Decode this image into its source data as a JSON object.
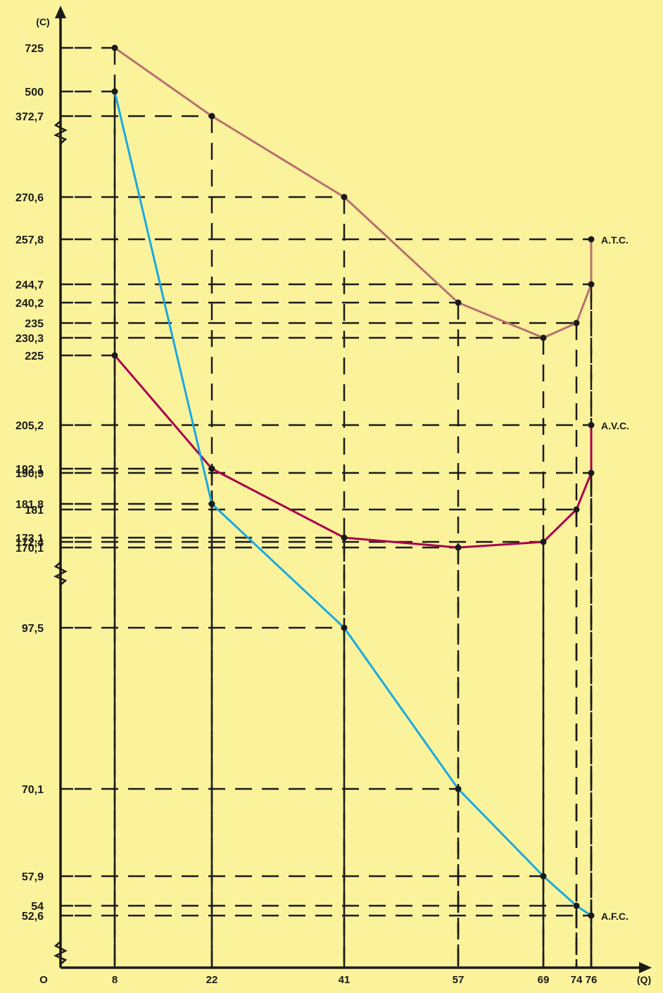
{
  "chart_data": {
    "type": "line",
    "title": "",
    "xlabel": "(Q)",
    "ylabel": "(C)",
    "origin_label": "O",
    "axis_breaks": "y-axis broken between 372,7 and 270,6, between 170,1 and 97,5, and between 52,6 and 0",
    "x_ticks": [
      8,
      22,
      41,
      57,
      69,
      74,
      76
    ],
    "y_ticks": [
      "725",
      "500",
      "372,7",
      "270,6",
      "257,8",
      "244,7",
      "240,2",
      "235",
      "230,3",
      "225",
      "205,2",
      "192,1",
      "190,9",
      "181,8",
      "181",
      "173,1",
      "172,4",
      "170,1",
      "97,5",
      "70,1",
      "57,9",
      "54",
      "52,6"
    ],
    "series": [
      {
        "name": "A.T.C.",
        "color": "#b87070",
        "points": [
          {
            "x": 8,
            "y": "725"
          },
          {
            "x": 22,
            "y": "372,7"
          },
          {
            "x": 41,
            "y": "270,6"
          },
          {
            "x": 57,
            "y": "240,2"
          },
          {
            "x": 69,
            "y": "230,3"
          },
          {
            "x": 74,
            "y": "235"
          },
          {
            "x": 76,
            "y": "244,7"
          },
          {
            "x": 76,
            "y": "257,8"
          }
        ]
      },
      {
        "name": "A.V.C.",
        "color": "#a8004f",
        "points": [
          {
            "x": 8,
            "y": "225"
          },
          {
            "x": 22,
            "y": "192,1"
          },
          {
            "x": 41,
            "y": "173,1"
          },
          {
            "x": 57,
            "y": "170,1"
          },
          {
            "x": 69,
            "y": "172,4"
          },
          {
            "x": 74,
            "y": "181"
          },
          {
            "x": 76,
            "y": "190,9"
          },
          {
            "x": 76,
            "y": "205,2"
          }
        ]
      },
      {
        "name": "A.F.C.",
        "color": "#1aa9e0",
        "points": [
          {
            "x": 8,
            "y": "500"
          },
          {
            "x": 22,
            "y": "181,8"
          },
          {
            "x": 41,
            "y": "97,5"
          },
          {
            "x": 57,
            "y": "70,1"
          },
          {
            "x": 69,
            "y": "57,9"
          },
          {
            "x": 74,
            "y": "54"
          },
          {
            "x": 76,
            "y": "52,6"
          }
        ]
      }
    ],
    "grid": false,
    "legend": "labels at curve ends, right"
  }
}
